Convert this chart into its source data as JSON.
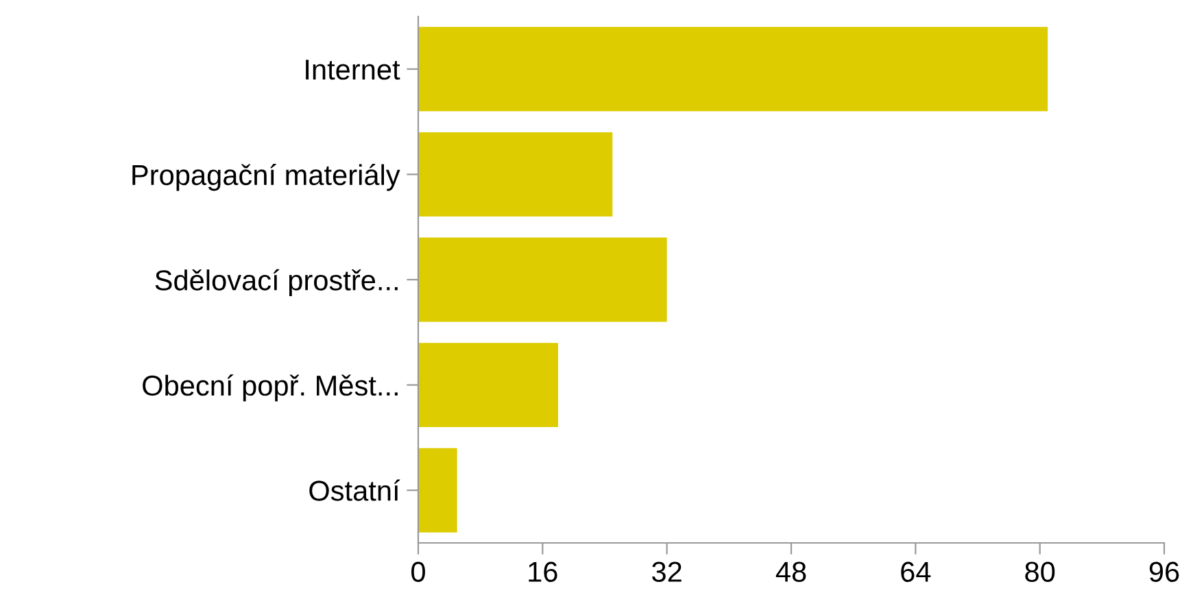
{
  "chart_data": {
    "type": "bar",
    "orientation": "horizontal",
    "categories": [
      "Internet",
      "Propagační materiály",
      "Sdělovací prostře...",
      "Obecní popř. Měst...",
      "Ostatní"
    ],
    "values": [
      81,
      25,
      32,
      18,
      5
    ],
    "color": "#dccc00",
    "xlim": [
      0,
      96
    ],
    "xticks": [
      0,
      16,
      32,
      48,
      64,
      80,
      96
    ],
    "grid": false
  }
}
